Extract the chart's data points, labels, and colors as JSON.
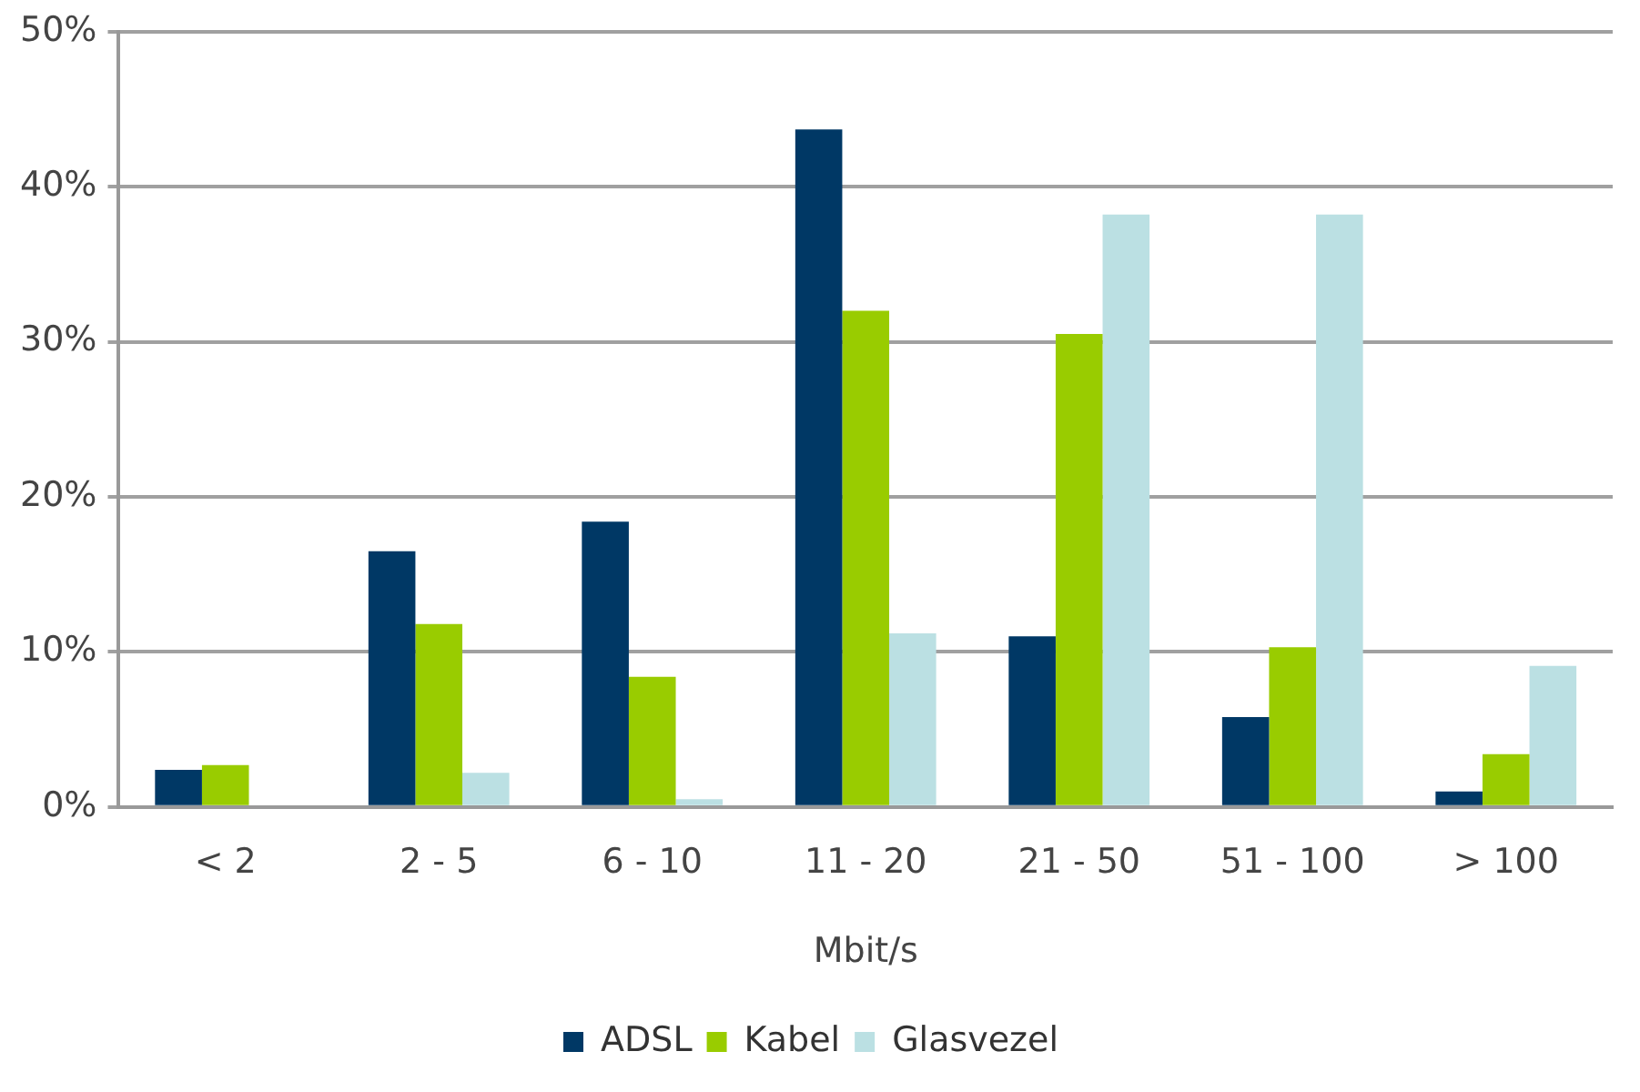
{
  "chart_data": {
    "type": "bar",
    "xlabel": "Mbit/s",
    "categories": [
      "< 2",
      "2 - 5",
      "6 - 10",
      "11 - 20",
      "21 - 50",
      "51 - 100",
      "> 100"
    ],
    "series": [
      {
        "name": "ADSL",
        "color": "#003865",
        "values": [
          2.4,
          16.5,
          18.4,
          43.7,
          11.0,
          5.8,
          1.0
        ]
      },
      {
        "name": "Kabel",
        "color": "#99cc00",
        "values": [
          2.7,
          11.8,
          8.4,
          32.0,
          30.5,
          10.3,
          3.4
        ]
      },
      {
        "name": "Glasvezel",
        "color": "#bbe0e3",
        "values": [
          0,
          2.2,
          0.5,
          11.2,
          38.2,
          38.2,
          9.1
        ]
      }
    ],
    "ylim": [
      0,
      50
    ],
    "yticks": [
      {
        "value": 0,
        "label": "0%"
      },
      {
        "value": 10,
        "label": "10%"
      },
      {
        "value": 20,
        "label": "20%"
      },
      {
        "value": 30,
        "label": "30%"
      },
      {
        "value": 40,
        "label": "40%"
      },
      {
        "value": 50,
        "label": "50%"
      }
    ],
    "grid": "y",
    "legend": "bottom"
  }
}
